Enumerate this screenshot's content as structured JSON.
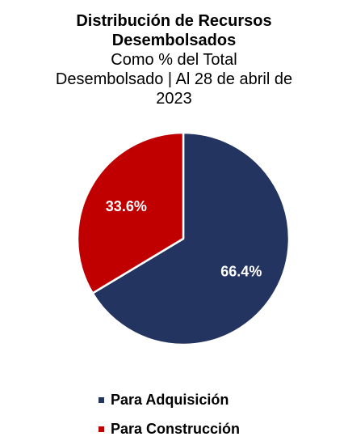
{
  "chart_data": {
    "type": "pie",
    "title": "Distribución  de Recursos Desembolsados",
    "title_lines": [
      "Distribución  de Recursos",
      "Desembolsados"
    ],
    "subtitle_lines": [
      "Como % del Total",
      "Desembolsado | Al 28 de abril de",
      "2023"
    ],
    "slices": [
      {
        "name": "Para Adquisición",
        "value": 66.4,
        "label": "66.4%",
        "color": "#22345F"
      },
      {
        "name": "Para Construcción",
        "value": 33.6,
        "label": "33.6%",
        "color": "#C00000"
      }
    ],
    "start": "12 o'clock",
    "direction": "clockwise",
    "legend_position": "bottom"
  }
}
